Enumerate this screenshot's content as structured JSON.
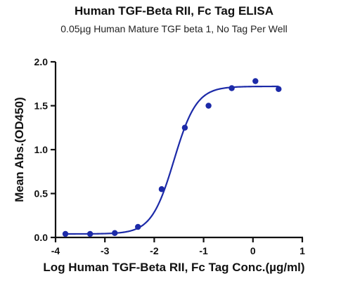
{
  "title": "Human TGF-Beta RII, Fc Tag ELISA",
  "subtitle": "0.05µg Human Mature TGF beta 1, No Tag Per Well",
  "chart_data": {
    "type": "scatter",
    "title": "Human TGF-Beta RII, Fc Tag ELISA",
    "subtitle": "0.05µg Human Mature TGF beta 1, No Tag Per Well",
    "xlabel": "Log Human TGF-Beta RII, Fc Tag Conc.(µg/ml)",
    "ylabel": "Mean Abs.(OD450)",
    "xlim": [
      -4,
      1
    ],
    "ylim": [
      0,
      2.0
    ],
    "x_ticks": [
      -4,
      -3,
      -2,
      -1,
      0,
      1
    ],
    "x_tick_labels": [
      "-4",
      "-3",
      "-2",
      "-1",
      "0",
      "1"
    ],
    "y_ticks": [
      0.0,
      0.5,
      1.0,
      1.5,
      2.0
    ],
    "y_tick_labels": [
      "0.0",
      "0.5",
      "1.0",
      "1.5",
      "2.0"
    ],
    "grid": false,
    "series": [
      {
        "points": [
          {
            "x": -3.8,
            "y": 0.04
          },
          {
            "x": -3.3,
            "y": 0.04
          },
          {
            "x": -2.8,
            "y": 0.05
          },
          {
            "x": -2.33,
            "y": 0.12
          },
          {
            "x": -1.85,
            "y": 0.55
          },
          {
            "x": -1.38,
            "y": 1.25
          },
          {
            "x": -0.9,
            "y": 1.5
          },
          {
            "x": -0.43,
            "y": 1.7
          },
          {
            "x": 0.05,
            "y": 1.78
          },
          {
            "x": 0.52,
            "y": 1.69
          }
        ],
        "fit": {
          "model": "4PL",
          "bottom": 0.04,
          "top": 1.72,
          "logEC50": -1.6,
          "hill": 1.9,
          "x_range": [
            -3.8,
            0.52
          ]
        },
        "color": "#1c2aa8"
      }
    ]
  }
}
